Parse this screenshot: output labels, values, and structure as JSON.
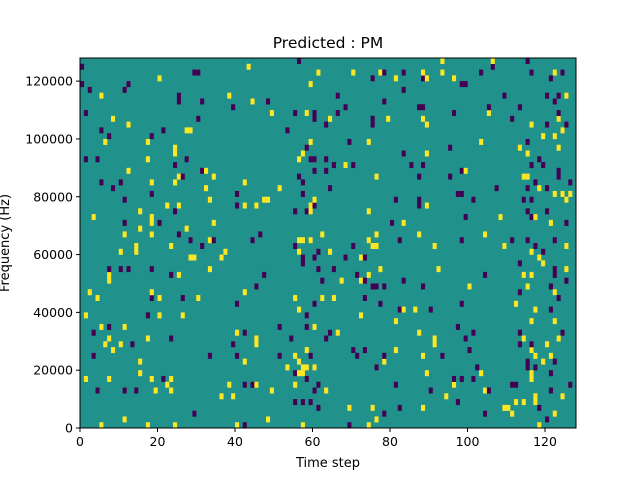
{
  "chart_data": {
    "type": "heatmap",
    "title": "Predicted : PM",
    "xlabel": "Time step",
    "ylabel": "Frequency (Hz)",
    "xlim": [
      0,
      128
    ],
    "ylim": [
      0,
      128000
    ],
    "xticks": [
      0,
      20,
      40,
      60,
      80,
      100,
      120
    ],
    "yticks": [
      0,
      20000,
      40000,
      60000,
      80000,
      100000,
      120000
    ],
    "value_colors": {
      "-1": "#440154",
      "0": "#21918c",
      "1": "#fde725"
    },
    "background_value": 0,
    "cell_height_hz": 2000,
    "nonzero_cells": [
      [
        0,
        110,
        -1
      ],
      [
        0,
        106,
        1
      ],
      [
        0,
        98,
        -1
      ],
      [
        0,
        96,
        1
      ],
      [
        0,
        90,
        1
      ],
      [
        0,
        86,
        -1
      ],
      [
        0,
        84,
        1
      ],
      [
        0,
        72,
        1
      ],
      [
        0,
        60,
        -1
      ],
      [
        0,
        52,
        1
      ],
      [
        0,
        48,
        1
      ],
      [
        0,
        38,
        -1
      ],
      [
        0,
        30,
        1
      ],
      [
        0,
        24,
        -1
      ],
      [
        0,
        20,
        1
      ],
      [
        0,
        48,
        1
      ]
    ]
  }
}
